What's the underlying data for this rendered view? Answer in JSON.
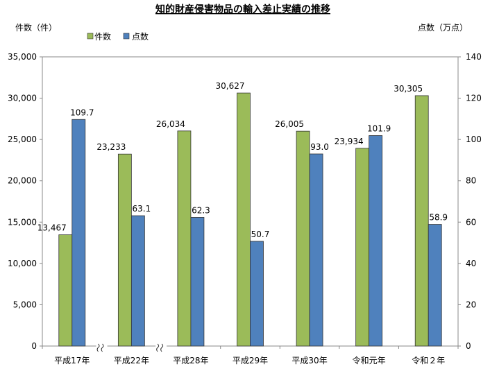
{
  "chart_data": {
    "type": "bar",
    "title": "知的財産侵害物品の輸入差止実績の推移",
    "categories": [
      "平成17年",
      "平成22年",
      "平成28年",
      "平成29年",
      "平成30年",
      "令和元年",
      "令和２年"
    ],
    "series": [
      {
        "name": "件数",
        "axis": "left",
        "color": "#9bbb59",
        "values": [
          13467,
          23233,
          26034,
          30627,
          26005,
          23934,
          30305
        ],
        "labels": [
          "13,467",
          "23,233",
          "26,034",
          "30,627",
          "26,005",
          "23,934",
          "30,305"
        ]
      },
      {
        "name": "点数",
        "axis": "right",
        "color": "#4f81bd",
        "values": [
          109.7,
          63.1,
          62.3,
          50.7,
          93.0,
          101.9,
          58.9
        ],
        "labels": [
          "109.7",
          "63.1",
          "62.3",
          "50.7",
          "93.0",
          "101.9",
          "58.9"
        ]
      }
    ],
    "y_left": {
      "label": "件数（件）",
      "min": 0,
      "max": 35000,
      "ticks": [
        0,
        5000,
        10000,
        15000,
        20000,
        25000,
        30000,
        35000
      ],
      "tick_labels": [
        "0",
        "5,000",
        "10,000",
        "15,000",
        "20,000",
        "25,000",
        "30,000",
        "35,000"
      ]
    },
    "y_right": {
      "label": "点数（万点）",
      "min": 0,
      "max": 140,
      "ticks": [
        0,
        20,
        40,
        60,
        80,
        100,
        120,
        140
      ],
      "tick_labels": [
        "0",
        "20",
        "40",
        "60",
        "80",
        "100",
        "120",
        "140"
      ]
    },
    "axis_breaks_after": [
      0,
      1
    ],
    "legend_position": "top-left",
    "grid": false
  }
}
